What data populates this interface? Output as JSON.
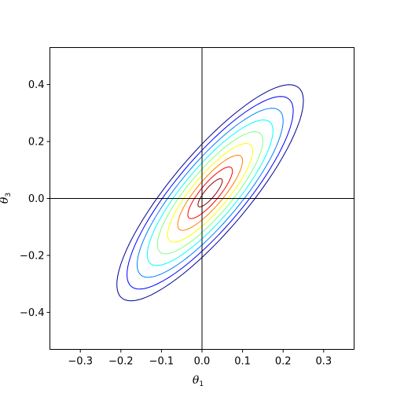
{
  "chart_data": {
    "type": "contour",
    "xlabel": "θ",
    "xlabel_sub": "1",
    "ylabel": "θ",
    "ylabel_sub": "3",
    "xlim": [
      -0.375,
      0.375
    ],
    "ylim": [
      -0.53,
      0.53
    ],
    "xticks": [
      -0.3,
      -0.2,
      -0.1,
      0.0,
      0.1,
      0.2,
      0.3
    ],
    "xtick_labels": [
      "−0.3",
      "−0.2",
      "−0.1",
      "0.0",
      "0.1",
      "0.2",
      "0.3"
    ],
    "yticks": [
      -0.4,
      -0.2,
      0.0,
      0.2,
      0.4
    ],
    "ytick_labels": [
      "−0.4",
      "−0.2",
      "0.0",
      "0.2",
      "0.4"
    ],
    "reference_lines": {
      "x": 0.0,
      "y": 0.0
    },
    "grid": false,
    "density": {
      "center": [
        0.02,
        0.02
      ],
      "sigma_x": 0.1,
      "sigma_y": 0.165,
      "correlation": 0.85,
      "levels": 9
    },
    "colormap": [
      "#00008f",
      "#0000ff",
      "#0080ff",
      "#00ffff",
      "#80ff80",
      "#ffff00",
      "#ff8000",
      "#ff0000",
      "#8f0000"
    ]
  }
}
